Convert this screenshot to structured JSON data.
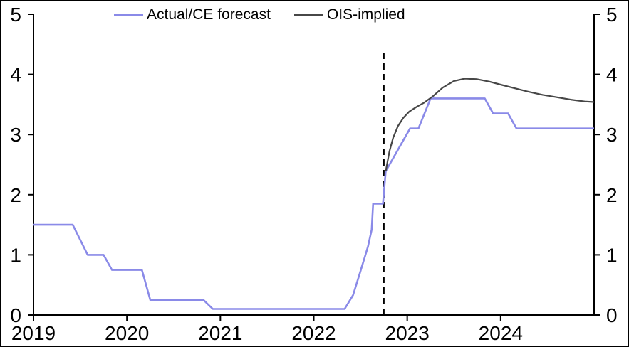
{
  "chart": {
    "legend_items": [
      {
        "label": "Actual/CE forecast",
        "color": "#8A8AE8"
      },
      {
        "label": "OIS-implied",
        "color": "#474747"
      }
    ]
  },
  "chart_data": {
    "type": "line",
    "title": "",
    "xlabel": "",
    "ylabel": "",
    "grid": false,
    "legend_position": "top",
    "x_range": [
      2019,
      2025
    ],
    "y_range": [
      0,
      5
    ],
    "x_ticks": {
      "values": [
        2019,
        2020,
        2021,
        2022,
        2023,
        2024
      ],
      "labels": [
        "2019",
        "2020",
        "2021",
        "2022",
        "2023",
        "2024"
      ]
    },
    "y_ticks": {
      "values": [
        0,
        1,
        2,
        3,
        4,
        5
      ],
      "labels": [
        "0",
        "1",
        "2",
        "3",
        "4",
        "5"
      ],
      "sides": [
        "left",
        "right"
      ]
    },
    "vline": {
      "x": 2022.75,
      "y_from": 0,
      "y_to": 4.39,
      "style": "dashed",
      "color": "#000000"
    },
    "series": [
      {
        "name": "Actual/CE forecast",
        "color": "#8A8AE8",
        "width": 2.6,
        "points": [
          [
            2019.0,
            1.5
          ],
          [
            2019.42,
            1.5
          ],
          [
            2019.58,
            1.0
          ],
          [
            2019.75,
            1.0
          ],
          [
            2019.84,
            0.75
          ],
          [
            2020.16,
            0.75
          ],
          [
            2020.25,
            0.25
          ],
          [
            2020.82,
            0.25
          ],
          [
            2020.92,
            0.1
          ],
          [
            2022.33,
            0.1
          ],
          [
            2022.42,
            0.33
          ],
          [
            2022.5,
            0.73
          ],
          [
            2022.58,
            1.14
          ],
          [
            2022.62,
            1.42
          ],
          [
            2022.635,
            1.85
          ],
          [
            2022.74,
            1.85
          ],
          [
            2022.77,
            2.39
          ],
          [
            2023.03,
            3.1
          ],
          [
            2023.12,
            3.1
          ],
          [
            2023.25,
            3.6
          ],
          [
            2023.83,
            3.6
          ],
          [
            2023.92,
            3.35
          ],
          [
            2024.08,
            3.35
          ],
          [
            2024.17,
            3.1
          ],
          [
            2025.0,
            3.1
          ]
        ]
      },
      {
        "name": "OIS-implied",
        "color": "#474747",
        "width": 2.2,
        "points": [
          [
            2022.77,
            2.39
          ],
          [
            2022.81,
            2.72
          ],
          [
            2022.85,
            2.95
          ],
          [
            2022.9,
            3.14
          ],
          [
            2022.96,
            3.28
          ],
          [
            2023.02,
            3.38
          ],
          [
            2023.1,
            3.46
          ],
          [
            2023.18,
            3.53
          ],
          [
            2023.27,
            3.63
          ],
          [
            2023.38,
            3.78
          ],
          [
            2023.5,
            3.89
          ],
          [
            2023.62,
            3.93
          ],
          [
            2023.75,
            3.92
          ],
          [
            2023.88,
            3.88
          ],
          [
            2024.0,
            3.83
          ],
          [
            2024.15,
            3.77
          ],
          [
            2024.3,
            3.71
          ],
          [
            2024.45,
            3.66
          ],
          [
            2024.6,
            3.62
          ],
          [
            2024.75,
            3.58
          ],
          [
            2024.9,
            3.55
          ],
          [
            2025.0,
            3.54
          ]
        ]
      }
    ]
  }
}
